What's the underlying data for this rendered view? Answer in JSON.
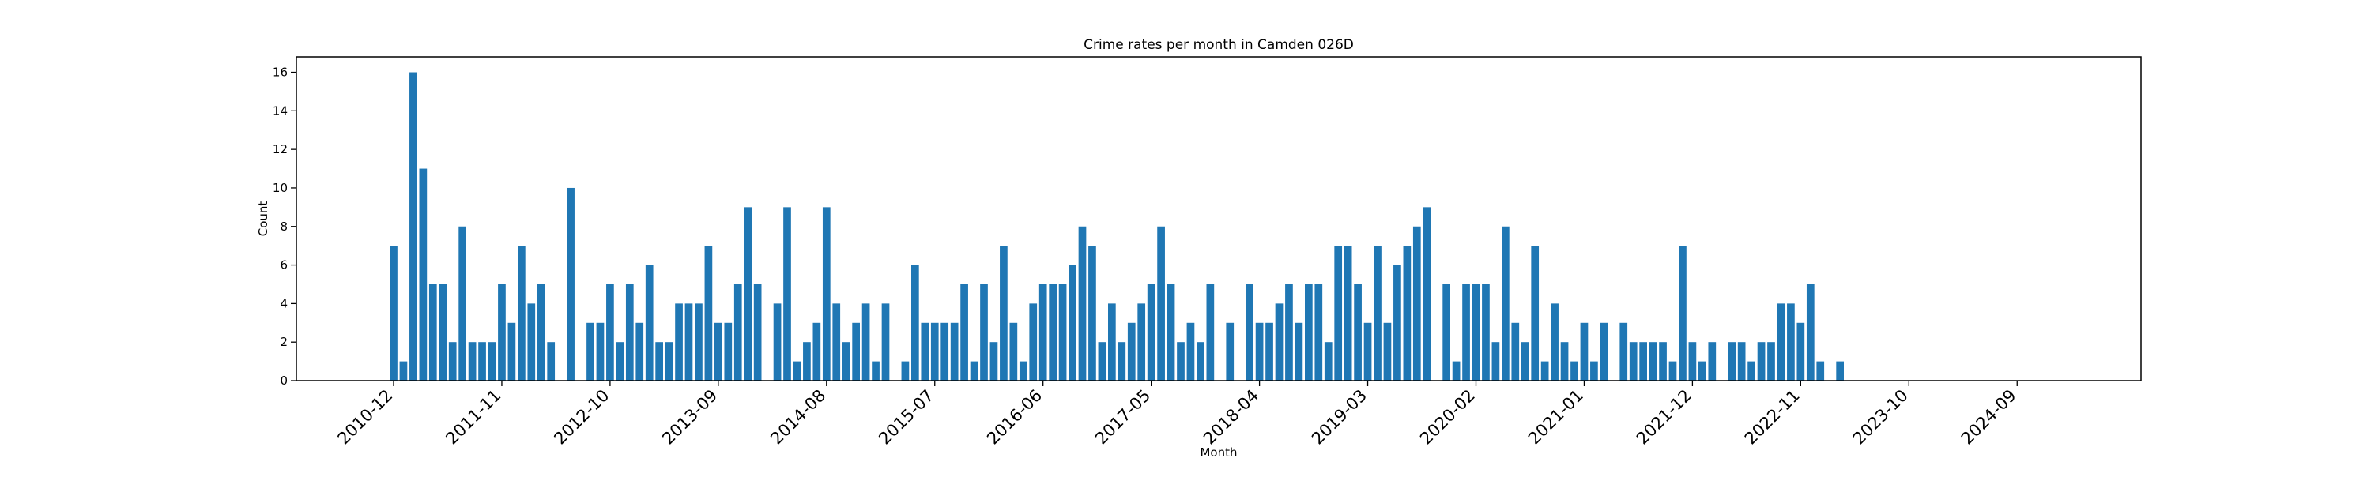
{
  "chart_data": {
    "type": "bar",
    "title": "Crime rates per month in Camden 026D",
    "xlabel": "Month",
    "ylabel": "Count",
    "ylim": [
      0,
      16.8
    ],
    "y_ticks": [
      0,
      2,
      4,
      6,
      8,
      10,
      12,
      14,
      16
    ],
    "x_tick_labels": [
      "2010-12",
      "2011-11",
      "2012-10",
      "2013-09",
      "2014-08",
      "2015-07",
      "2016-06",
      "2017-05",
      "2018-04",
      "2019-03",
      "2020-02",
      "2021-01",
      "2021-12",
      "2022-11",
      "2023-10",
      "2024-09"
    ],
    "x_tick_rotation": 45,
    "grid": false,
    "bar_color": "#1f77b4",
    "start_month": "2010-12",
    "months_shown": 189,
    "values": [
      7,
      1,
      16,
      11,
      5,
      5,
      2,
      8,
      2,
      2,
      2,
      5,
      3,
      7,
      4,
      5,
      2,
      null,
      10,
      null,
      3,
      3,
      5,
      2,
      5,
      3,
      6,
      2,
      2,
      4,
      4,
      4,
      7,
      3,
      3,
      5,
      9,
      5,
      null,
      4,
      9,
      1,
      2,
      3,
      9,
      4,
      2,
      3,
      4,
      1,
      4,
      null,
      1,
      6,
      3,
      3,
      3,
      3,
      5,
      1,
      5,
      2,
      7,
      3,
      1,
      4,
      5,
      5,
      5,
      6,
      8,
      7,
      2,
      4,
      2,
      3,
      4,
      5,
      8,
      5,
      2,
      3,
      2,
      5,
      null,
      3,
      null,
      5,
      3,
      3,
      4,
      5,
      3,
      5,
      5,
      2,
      7,
      7,
      5,
      3,
      7,
      3,
      6,
      7,
      8,
      9,
      null,
      5,
      1,
      5,
      5,
      5,
      2,
      8,
      3,
      2,
      7,
      1,
      4,
      2,
      1,
      3,
      1,
      3,
      null,
      3,
      2,
      2,
      2,
      2,
      1,
      7,
      2,
      1,
      2,
      null,
      2,
      2,
      1,
      2,
      2,
      4,
      4,
      3,
      5,
      1,
      null,
      1,
      null,
      null,
      null,
      null,
      null,
      null,
      null,
      null,
      null,
      null,
      null,
      null,
      null,
      null,
      null,
      null,
      null,
      null,
      null,
      null,
      null,
      null,
      null,
      null,
      null,
      null,
      null,
      null,
      null,
      null,
      null,
      null,
      null,
      null,
      null,
      null,
      null,
      null,
      null,
      null,
      null,
      null,
      null,
      null
    ]
  }
}
